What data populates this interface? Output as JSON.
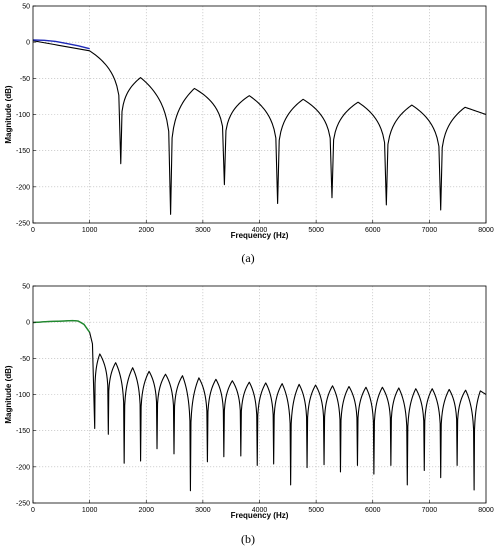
{
  "chart_data": [
    {
      "type": "line",
      "panel_label": "(a)",
      "xlabel": "Frequency (Hz)",
      "ylabel": "Magnitude (dB)",
      "xlim": [
        0,
        8000
      ],
      "ylim": [
        -250,
        50
      ],
      "xticks": [
        0,
        1000,
        2000,
        3000,
        4000,
        5000,
        6000,
        7000,
        8000
      ],
      "yticks": [
        50,
        0,
        -50,
        -100,
        -150,
        -200,
        -250
      ],
      "grid": true,
      "series": [
        {
          "color": "#000000",
          "lobe_tops": [
            {
              "x": 0,
              "y": 2
            },
            {
              "x": 1000,
              "y": -12
            },
            {
              "x": 1900,
              "y": -49
            },
            {
              "x": 2850,
              "y": -64
            },
            {
              "x": 3820,
              "y": -74
            },
            {
              "x": 4770,
              "y": -79
            },
            {
              "x": 5740,
              "y": -83
            },
            {
              "x": 6690,
              "y": -87
            },
            {
              "x": 7630,
              "y": -90
            },
            {
              "x": 8000,
              "y": -100
            }
          ],
          "nulls": [
            {
              "x": 1550,
              "y": -168
            },
            {
              "x": 2430,
              "y": -238
            },
            {
              "x": 3380,
              "y": -197
            },
            {
              "x": 4320,
              "y": -223
            },
            {
              "x": 5280,
              "y": -215
            },
            {
              "x": 6240,
              "y": -225
            },
            {
              "x": 7200,
              "y": -232
            }
          ]
        },
        {
          "color": "#1f2ab8",
          "x": [
            0,
            200,
            400,
            600,
            800,
            1000
          ],
          "y": [
            3,
            2.5,
            1,
            -2,
            -5,
            -9
          ]
        }
      ]
    },
    {
      "type": "line",
      "panel_label": "(b)",
      "xlabel": "Frequency (Hz)",
      "ylabel": "Magnitude (dB)",
      "xlim": [
        0,
        8000
      ],
      "ylim": [
        -250,
        50
      ],
      "xticks": [
        0,
        1000,
        2000,
        3000,
        4000,
        5000,
        6000,
        7000,
        8000
      ],
      "yticks": [
        50,
        0,
        -50,
        -100,
        -150,
        -200,
        -250
      ],
      "grid": true,
      "series": [
        {
          "color": "#000000",
          "passband": {
            "x": [
              0,
              100,
              250,
              400,
              550,
              700,
              800,
              900,
              1000,
              1050
            ],
            "y": [
              -0.5,
              0,
              0.8,
              1.2,
              1.6,
              2.2,
              1.5,
              -3,
              -14,
              -30
            ]
          },
          "lobe_tops": [
            {
              "x": 1180,
              "y": -44
            },
            {
              "x": 1460,
              "y": -56
            },
            {
              "x": 1760,
              "y": -63
            },
            {
              "x": 2050,
              "y": -68
            },
            {
              "x": 2340,
              "y": -72
            },
            {
              "x": 2640,
              "y": -74
            },
            {
              "x": 2930,
              "y": -77
            },
            {
              "x": 3230,
              "y": -79
            },
            {
              "x": 3520,
              "y": -81
            },
            {
              "x": 3820,
              "y": -83
            },
            {
              "x": 4110,
              "y": -84
            },
            {
              "x": 4400,
              "y": -85
            },
            {
              "x": 4700,
              "y": -86
            },
            {
              "x": 4990,
              "y": -87
            },
            {
              "x": 5290,
              "y": -88
            },
            {
              "x": 5580,
              "y": -89
            },
            {
              "x": 5880,
              "y": -90
            },
            {
              "x": 6170,
              "y": -90
            },
            {
              "x": 6460,
              "y": -91
            },
            {
              "x": 6760,
              "y": -92
            },
            {
              "x": 7050,
              "y": -92
            },
            {
              "x": 7350,
              "y": -93
            },
            {
              "x": 7640,
              "y": -94
            },
            {
              "x": 7900,
              "y": -95
            },
            {
              "x": 8000,
              "y": -100
            }
          ],
          "nulls": [
            {
              "x": 1090,
              "y": -147
            },
            {
              "x": 1330,
              "y": -155
            },
            {
              "x": 1610,
              "y": -195
            },
            {
              "x": 1900,
              "y": -192
            },
            {
              "x": 2190,
              "y": -175
            },
            {
              "x": 2490,
              "y": -182
            },
            {
              "x": 2780,
              "y": -233
            },
            {
              "x": 3080,
              "y": -193
            },
            {
              "x": 3370,
              "y": -186
            },
            {
              "x": 3670,
              "y": -185
            },
            {
              "x": 3960,
              "y": -198
            },
            {
              "x": 4250,
              "y": -196
            },
            {
              "x": 4550,
              "y": -225
            },
            {
              "x": 4840,
              "y": -201
            },
            {
              "x": 5140,
              "y": -197
            },
            {
              "x": 5430,
              "y": -207
            },
            {
              "x": 5730,
              "y": -198
            },
            {
              "x": 6020,
              "y": -210
            },
            {
              "x": 6320,
              "y": -198
            },
            {
              "x": 6610,
              "y": -225
            },
            {
              "x": 6910,
              "y": -205
            },
            {
              "x": 7200,
              "y": -215
            },
            {
              "x": 7490,
              "y": -198
            },
            {
              "x": 7790,
              "y": -232
            }
          ]
        },
        {
          "color": "#1f8a2e",
          "x": [
            0,
            100,
            250,
            400,
            550,
            700,
            800,
            900,
            1000
          ],
          "y": [
            -0.5,
            0,
            0.8,
            1.2,
            1.6,
            2.2,
            1.5,
            -3,
            -14
          ]
        }
      ]
    }
  ]
}
